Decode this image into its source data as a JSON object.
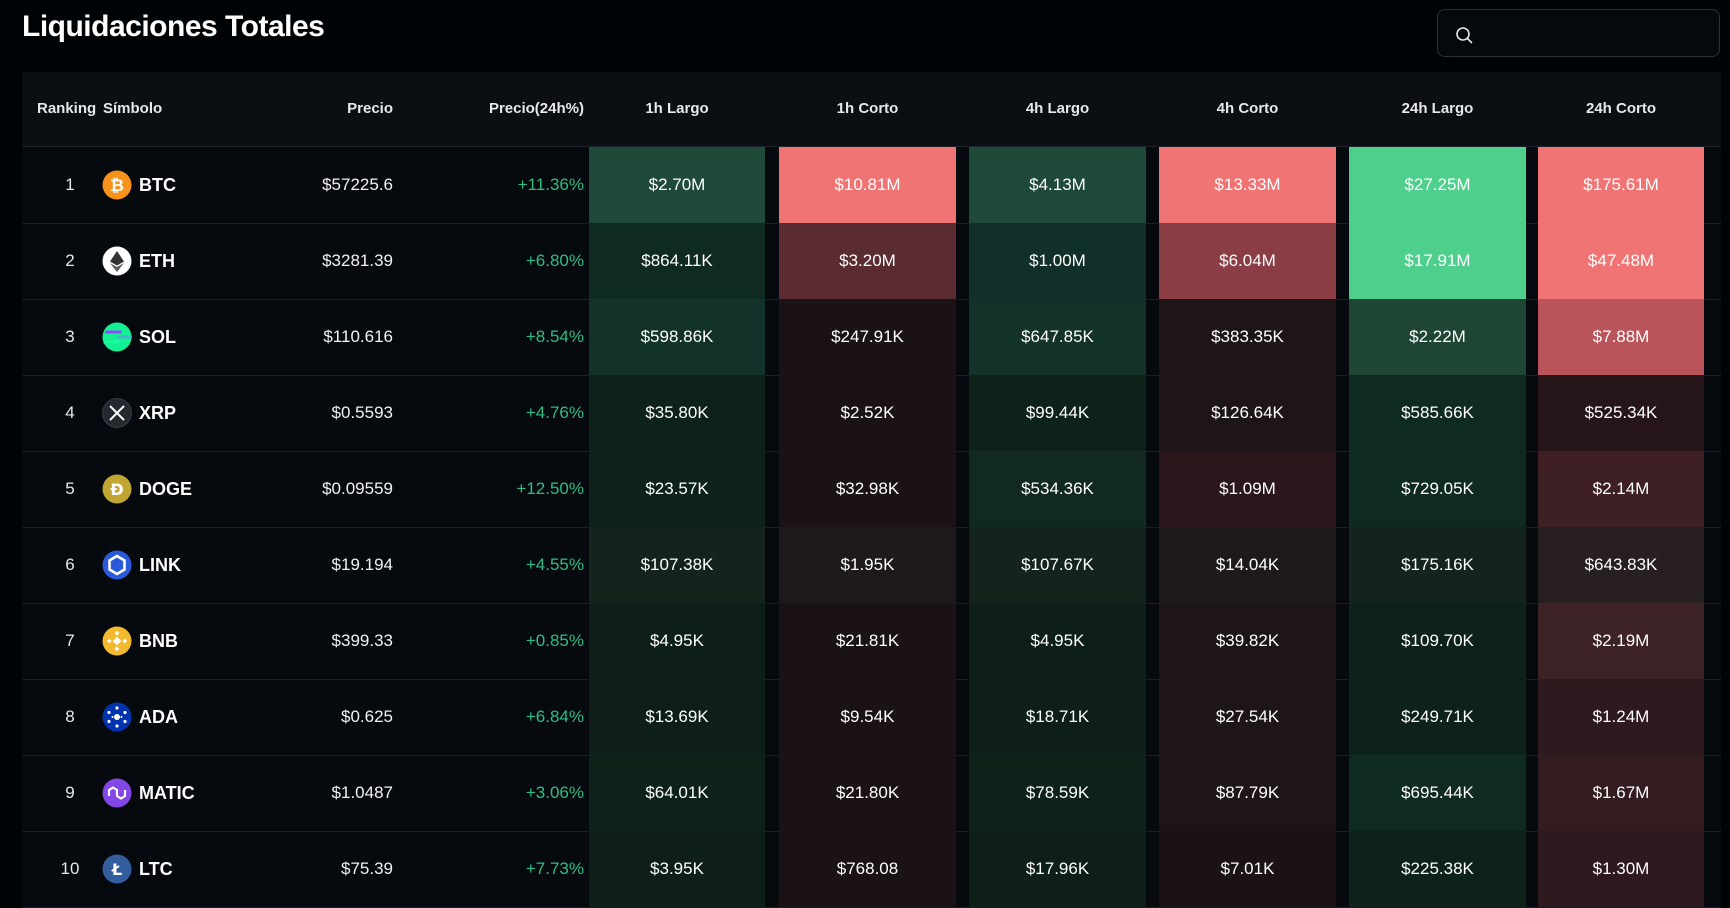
{
  "page": {
    "title": "Liquidaciones Totales"
  },
  "search": {
    "placeholder": "",
    "value": "",
    "icon": "search-icon"
  },
  "table": {
    "headers": {
      "ranking": "Ranking",
      "simbolo": "Símbolo",
      "precio": "Precio",
      "precio24": "Precio(24h%)",
      "l1": "1h Largo",
      "s1": "1h Corto",
      "l4": "4h Largo",
      "s4": "4h Corto",
      "l24": "24h Largo",
      "s24": "24h Corto"
    },
    "rows": [
      {
        "rank": "1",
        "symbol": "BTC",
        "icon": "btc-icon",
        "logo_color": "#f7931a",
        "price": "$57225.6",
        "change": "+11.36%",
        "l1": "$2.70M",
        "s1": "$10.81M",
        "l4": "$4.13M",
        "s4": "$13.33M",
        "l24": "$27.25M",
        "s24": "$175.61M"
      },
      {
        "rank": "2",
        "symbol": "ETH",
        "icon": "eth-icon",
        "logo_color": "#ffffff",
        "price": "$3281.39",
        "change": "+6.80%",
        "l1": "$864.11K",
        "s1": "$3.20M",
        "l4": "$1.00M",
        "s4": "$6.04M",
        "l24": "$17.91M",
        "s24": "$47.48M"
      },
      {
        "rank": "3",
        "symbol": "SOL",
        "icon": "sol-icon",
        "logo_color": "#14f195",
        "price": "$110.616",
        "change": "+8.54%",
        "l1": "$598.86K",
        "s1": "$247.91K",
        "l4": "$647.85K",
        "s4": "$383.35K",
        "l24": "$2.22M",
        "s24": "$7.88M"
      },
      {
        "rank": "4",
        "symbol": "XRP",
        "icon": "xrp-icon",
        "logo_color": "#23292f",
        "price": "$0.5593",
        "change": "+4.76%",
        "l1": "$35.80K",
        "s1": "$2.52K",
        "l4": "$99.44K",
        "s4": "$126.64K",
        "l24": "$585.66K",
        "s24": "$525.34K"
      },
      {
        "rank": "5",
        "symbol": "DOGE",
        "icon": "doge-icon",
        "logo_color": "#c2a633",
        "price": "$0.09559",
        "change": "+12.50%",
        "l1": "$23.57K",
        "s1": "$32.98K",
        "l4": "$534.36K",
        "s4": "$1.09M",
        "l24": "$729.05K",
        "s24": "$2.14M"
      },
      {
        "rank": "6",
        "symbol": "LINK",
        "icon": "link-icon",
        "logo_color": "#2a5ada",
        "price": "$19.194",
        "change": "+4.55%",
        "l1": "$107.38K",
        "s1": "$1.95K",
        "l4": "$107.67K",
        "s4": "$14.04K",
        "l24": "$175.16K",
        "s24": "$643.83K"
      },
      {
        "rank": "7",
        "symbol": "BNB",
        "icon": "bnb-icon",
        "logo_color": "#f3ba2f",
        "price": "$399.33",
        "change": "+0.85%",
        "l1": "$4.95K",
        "s1": "$21.81K",
        "l4": "$4.95K",
        "s4": "$39.82K",
        "l24": "$109.70K",
        "s24": "$2.19M"
      },
      {
        "rank": "8",
        "symbol": "ADA",
        "icon": "ada-icon",
        "logo_color": "#0033ad",
        "price": "$0.625",
        "change": "+6.84%",
        "l1": "$13.69K",
        "s1": "$9.54K",
        "l4": "$18.71K",
        "s4": "$27.54K",
        "l24": "$249.71K",
        "s24": "$1.24M"
      },
      {
        "rank": "9",
        "symbol": "MATIC",
        "icon": "matic-icon",
        "logo_color": "#8247e5",
        "price": "$1.0487",
        "change": "+3.06%",
        "l1": "$64.01K",
        "s1": "$21.80K",
        "l4": "$78.59K",
        "s4": "$87.79K",
        "l24": "$695.44K",
        "s24": "$1.67M"
      },
      {
        "rank": "10",
        "symbol": "LTC",
        "icon": "ltc-icon",
        "logo_color": "#345d9d",
        "price": "$75.39",
        "change": "+7.73%",
        "l1": "$3.95K",
        "s1": "$768.08",
        "l4": "$17.96K",
        "s4": "$7.01K",
        "l24": "$225.38K",
        "s24": "$1.30M"
      }
    ],
    "cell_colors": {
      "l1": [
        "#1f4a39",
        "#0f2a20",
        "#13322a",
        "#0d2219",
        "#0d2219",
        "#14241d",
        "#0d1f18",
        "#0d1f18",
        "#0d2219",
        "#0d1f18"
      ],
      "s1": [
        "#f07474",
        "#5a2b31",
        "#1b1216",
        "#1b1216",
        "#1b1216",
        "#1e1a1b",
        "#1b1216",
        "#1b1216",
        "#1b1216",
        "#1b1216"
      ],
      "l4": [
        "#1f4a39",
        "#12302a",
        "#13322a",
        "#0d2219",
        "#11291f",
        "#14241d",
        "#0d1f18",
        "#0d1f18",
        "#0d2219",
        "#0d1f18"
      ],
      "s4": [
        "#f07474",
        "#8a3d44",
        "#1e1519",
        "#1e1519",
        "#2b171b",
        "#1e1a1b",
        "#1e1519",
        "#1e1519",
        "#1e1519",
        "#1b1216"
      ],
      "l24": [
        "#4fcf8c",
        "#4fcf8c",
        "#1f4535",
        "#0f2a20",
        "#0f2a20",
        "#14241d",
        "#0d2219",
        "#0d2219",
        "#0f2a20",
        "#0d2219"
      ],
      "s24": [
        "#f07474",
        "#f07474",
        "#b8545a",
        "#26161a",
        "#3d1f24",
        "#281f22",
        "#3d2226",
        "#2e1a1e",
        "#331c20",
        "#2e1a1e"
      ]
    }
  }
}
